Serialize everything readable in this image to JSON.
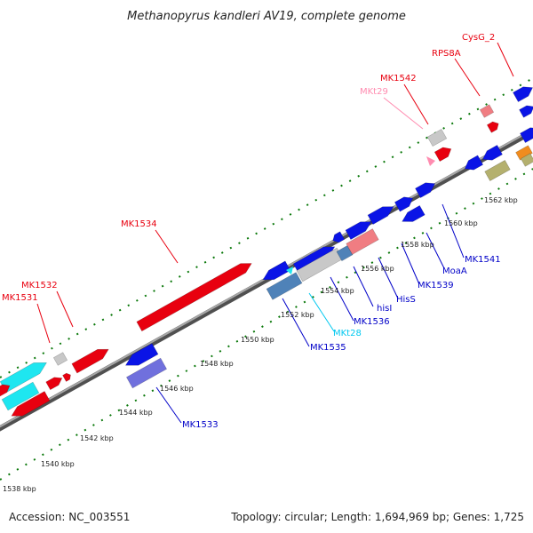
{
  "title": "Methanopyrus kandleri AV19, complete genome",
  "footer": {
    "accession": "Accession: NC_003551",
    "summary": "Topology: circular; Length: 1,694,969 bp; Genes: 1,725"
  },
  "ticks": [
    "1538 kbp",
    "1540 kbp",
    "1542 kbp",
    "1544 kbp",
    "1546 kbp",
    "1548 kbp",
    "1550 kbp",
    "1552 kbp",
    "1554 kbp",
    "1556 kbp",
    "1558 kbp",
    "1560 kbp",
    "1562 kbp"
  ],
  "gene_labels": {
    "cysg2": "CysG_2",
    "rps8a": "RPS8A",
    "mk1542": "MK1542",
    "mkt29": "MKt29",
    "mk1534": "MK1534",
    "mk1532": "MK1532",
    "mk1531": "MK1531",
    "mk1541": "MK1541",
    "moaa": "MoaA",
    "mk1539": "MK1539",
    "hiss": "HisS",
    "hisi": "hisI",
    "mk1536": "MK1536",
    "mkt28": "MKt28",
    "mk1535": "MK1535",
    "mk1533": "MK1533"
  },
  "colors": {
    "red_label": "#e8000f",
    "blue_label": "#0000c8",
    "pink_label": "#ff8cb0",
    "cyan_label": "#00c8f0",
    "gene_red": "#e8000f",
    "gene_blue": "#0a14e6",
    "gene_cyan": "#1ee6f0",
    "gene_purple": "#7070dd",
    "gene_steel": "#4f82b8",
    "gene_gray": "#c8c8c8",
    "gene_salmon": "#f07d82",
    "gene_olive": "#b4b06e",
    "gene_orange": "#f08c1e",
    "tick_green": "#0a780a",
    "backbone": "#8c8c8c"
  }
}
